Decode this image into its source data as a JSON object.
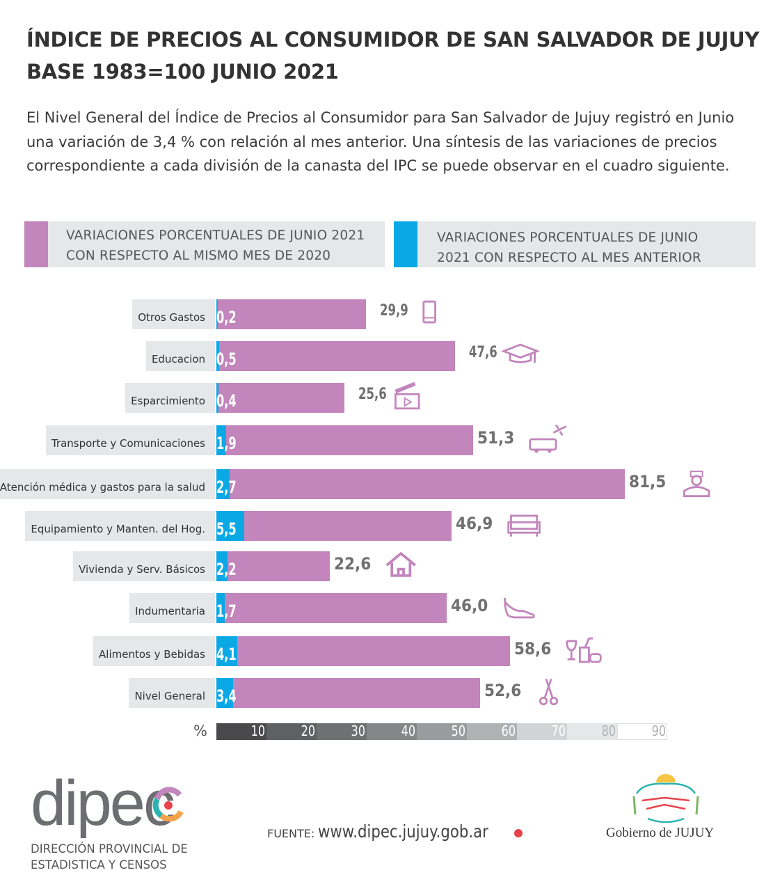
{
  "header": {
    "title_line1": "ÍNDICE DE PRECIOS AL CONSUMIDOR DE SAN SALVADOR DE JUJUY",
    "title_line2": "BASE 1983=100 JUNIO 2021",
    "intro": "El Nivel General del Índice de Precios al Consumidor para San Salvador de Jujuy registró en Junio una variación de 3,4 % con relación al mes anterior. Una síntesis de las variaciones de precios correspondiente a cada división de la canasta del IPC se puede observar en el cuadro siguiente."
  },
  "colors": {
    "annual": "#c285bc",
    "monthly": "#0aa9e6",
    "label_bg": "#e6e7e9",
    "value_text": "#707070"
  },
  "chart_data": {
    "type": "bar",
    "orientation": "horizontal",
    "categories": [
      "Otros Gastos",
      "Educacion",
      "Esparcimiento",
      "Transporte y Comunicaciones",
      "Atención médica y gastos para la salud",
      "Equipamiento y Manten. del Hog.",
      "Vivienda y Serv. Básicos",
      "Indumentaria",
      "Alimentos y Bebidas",
      "Nivel General"
    ],
    "series": [
      {
        "name": "VARIACIONES PORCENTUALES DE JUNIO 2021 CON RESPECTO AL MISMO MES DE 2020",
        "color": "#c285bc",
        "values": [
          29.9,
          47.6,
          25.6,
          51.3,
          81.5,
          46.9,
          22.6,
          46.0,
          58.6,
          52.6
        ],
        "labels": [
          "29,9",
          "47,6",
          "25,6",
          "51,3",
          "81,5",
          "46,9",
          "22,6",
          "46,0",
          "58,6",
          "52,6"
        ]
      },
      {
        "name": "VARIACIONES PORCENTUALES DE JUNIO 2021 CON RESPECTO AL MES ANTERIOR",
        "color": "#0aa9e6",
        "values": [
          0.2,
          0.5,
          0.4,
          1.9,
          2.7,
          5.5,
          2.2,
          1.7,
          4.1,
          3.4
        ],
        "labels": [
          "0,2",
          "0,5",
          "0,4",
          "1,9",
          "2,7",
          "5,5",
          "2,2",
          "1,7",
          "4,1",
          "3,4"
        ]
      }
    ],
    "icons": [
      "mobile-phone-icon",
      "graduation-cap-icon",
      "clapperboard-icon",
      "bus-plane-icon",
      "doctor-icon",
      "sofa-icon",
      "house-icon",
      "high-heel-icon",
      "food-drink-icon",
      "scissors-icon"
    ],
    "xlabel": "%",
    "xlim": [
      0,
      90
    ],
    "xticks": [
      "10",
      "20",
      "30",
      "40",
      "50",
      "60",
      "70",
      "80",
      "90"
    ],
    "legend": "top"
  },
  "footer": {
    "logo_text": "dipec",
    "org_line1": "DIRECCIÓN PROVINCIAL DE",
    "org_line2": "ESTADISTICA Y CENSOS",
    "source_label": "FUENTE:",
    "source_url": "www.dipec.jujuy.gob.ar",
    "gov_text": "Gobierno de JUJUY"
  }
}
